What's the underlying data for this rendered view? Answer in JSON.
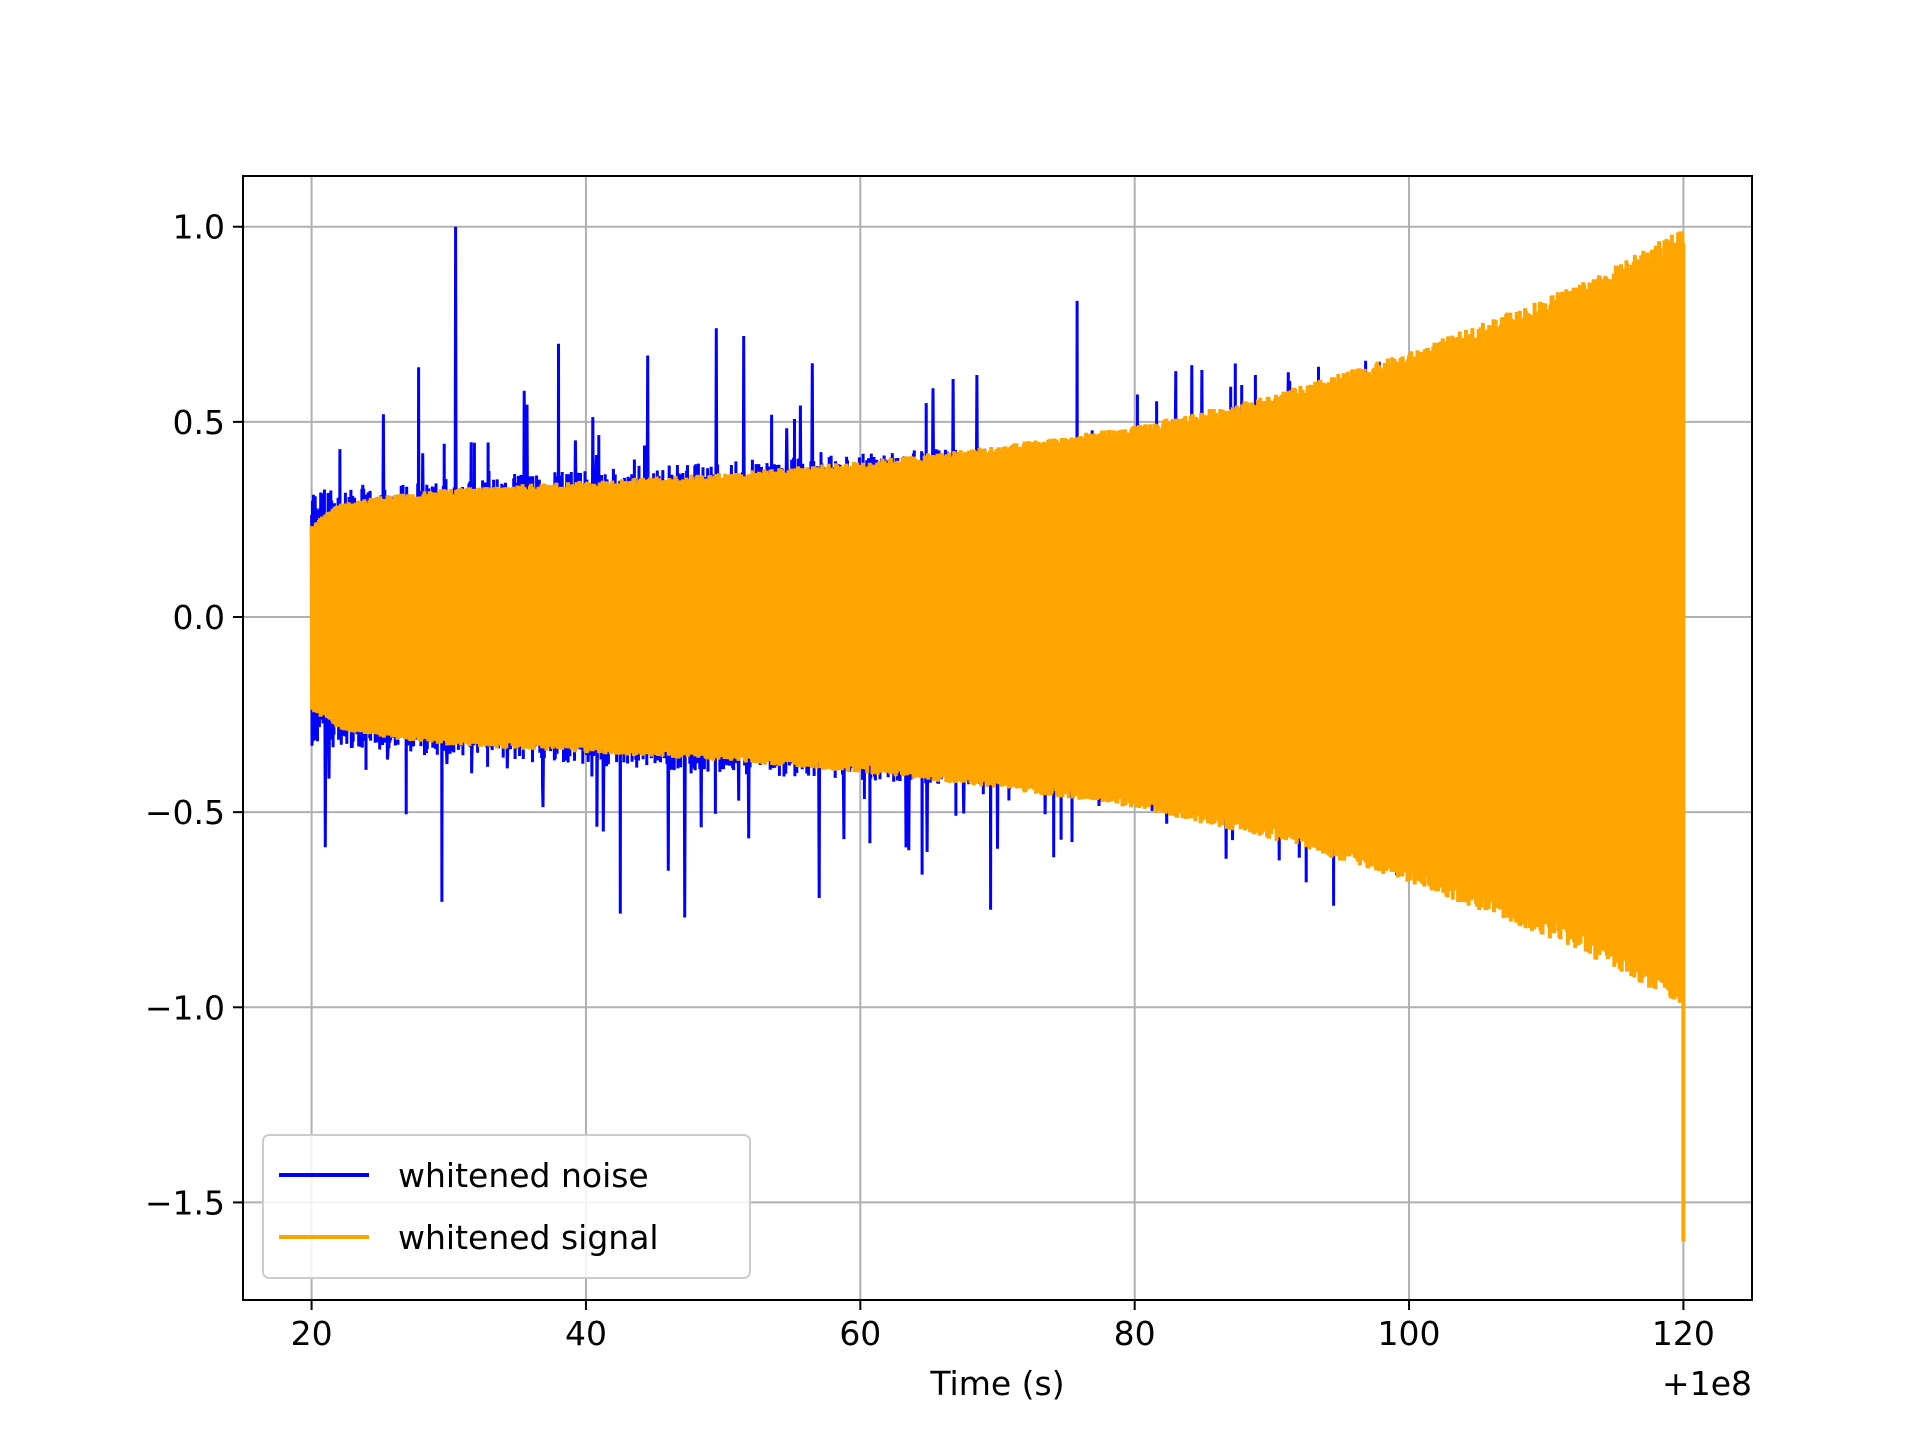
{
  "chart_data": {
    "type": "line",
    "title": "",
    "xlabel": "Time (s)",
    "ylabel": "",
    "x_offset_label": "+1e8",
    "xlim": [
      15,
      125
    ],
    "ylim": [
      -1.75,
      1.13
    ],
    "xticks": [
      20,
      40,
      60,
      80,
      100,
      120
    ],
    "xtick_labels": [
      "20",
      "40",
      "60",
      "80",
      "100",
      "120"
    ],
    "yticks": [
      1.0,
      0.5,
      0.0,
      -0.5,
      -1.0,
      -1.5
    ],
    "ytick_labels": [
      "1.0",
      "0.5",
      "0.0",
      "−0.5",
      "−1.0",
      "−1.5"
    ],
    "grid": true,
    "legend_position": "lower-left",
    "series": [
      {
        "name": "whitened noise",
        "color": "#0000ff",
        "x_range": [
          20,
          120
        ],
        "envelope_upper": [
          [
            20,
            0.33
          ],
          [
            40,
            0.38
          ],
          [
            60,
            0.42
          ],
          [
            80,
            0.46
          ],
          [
            100,
            0.49
          ],
          [
            120,
            0.52
          ]
        ],
        "envelope_lower": [
          [
            20,
            -0.33
          ],
          [
            40,
            -0.38
          ],
          [
            60,
            -0.42
          ],
          [
            80,
            -0.46
          ],
          [
            100,
            -0.49
          ],
          [
            120,
            -0.52
          ]
        ],
        "spikes": [
          [
            30.5,
            1.0
          ],
          [
            29.5,
            -0.73
          ],
          [
            27.8,
            0.64
          ],
          [
            38.0,
            0.7
          ],
          [
            44.5,
            0.67
          ],
          [
            46.0,
            -0.65
          ],
          [
            49.5,
            0.74
          ],
          [
            51.5,
            0.72
          ],
          [
            56.5,
            0.65
          ],
          [
            75.8,
            0.81
          ],
          [
            68.5,
            0.62
          ],
          [
            64.5,
            -0.66
          ],
          [
            69.5,
            -0.75
          ],
          [
            42.5,
            -0.76
          ],
          [
            47.2,
            -0.77
          ],
          [
            21.0,
            -0.59
          ],
          [
            35.5,
            0.58
          ],
          [
            57.0,
            -0.72
          ],
          [
            83.0,
            0.63
          ],
          [
            87.0,
            0.59
          ],
          [
            88.8,
            0.62
          ],
          [
            94.5,
            -0.74
          ],
          [
            92.5,
            -0.68
          ]
        ]
      },
      {
        "name": "whitened signal",
        "color": "#ffa500",
        "x_range": [
          20,
          120
        ],
        "envelope_upper": [
          [
            20,
            0.24
          ],
          [
            22,
            0.29
          ],
          [
            25,
            0.31
          ],
          [
            30,
            0.33
          ],
          [
            40,
            0.35
          ],
          [
            50,
            0.37
          ],
          [
            60,
            0.4
          ],
          [
            70,
            0.44
          ],
          [
            80,
            0.49
          ],
          [
            90,
            0.57
          ],
          [
            100,
            0.68
          ],
          [
            110,
            0.82
          ],
          [
            115,
            0.9
          ],
          [
            120,
            1.0
          ]
        ],
        "envelope_lower": [
          [
            20,
            -0.24
          ],
          [
            22,
            -0.29
          ],
          [
            25,
            -0.31
          ],
          [
            30,
            -0.33
          ],
          [
            40,
            -0.35
          ],
          [
            50,
            -0.37
          ],
          [
            60,
            -0.4
          ],
          [
            70,
            -0.44
          ],
          [
            80,
            -0.49
          ],
          [
            90,
            -0.57
          ],
          [
            100,
            -0.68
          ],
          [
            110,
            -0.82
          ],
          [
            115,
            -0.9
          ],
          [
            120,
            -1.0
          ]
        ],
        "end_value": [
          120,
          -1.6
        ]
      }
    ]
  }
}
